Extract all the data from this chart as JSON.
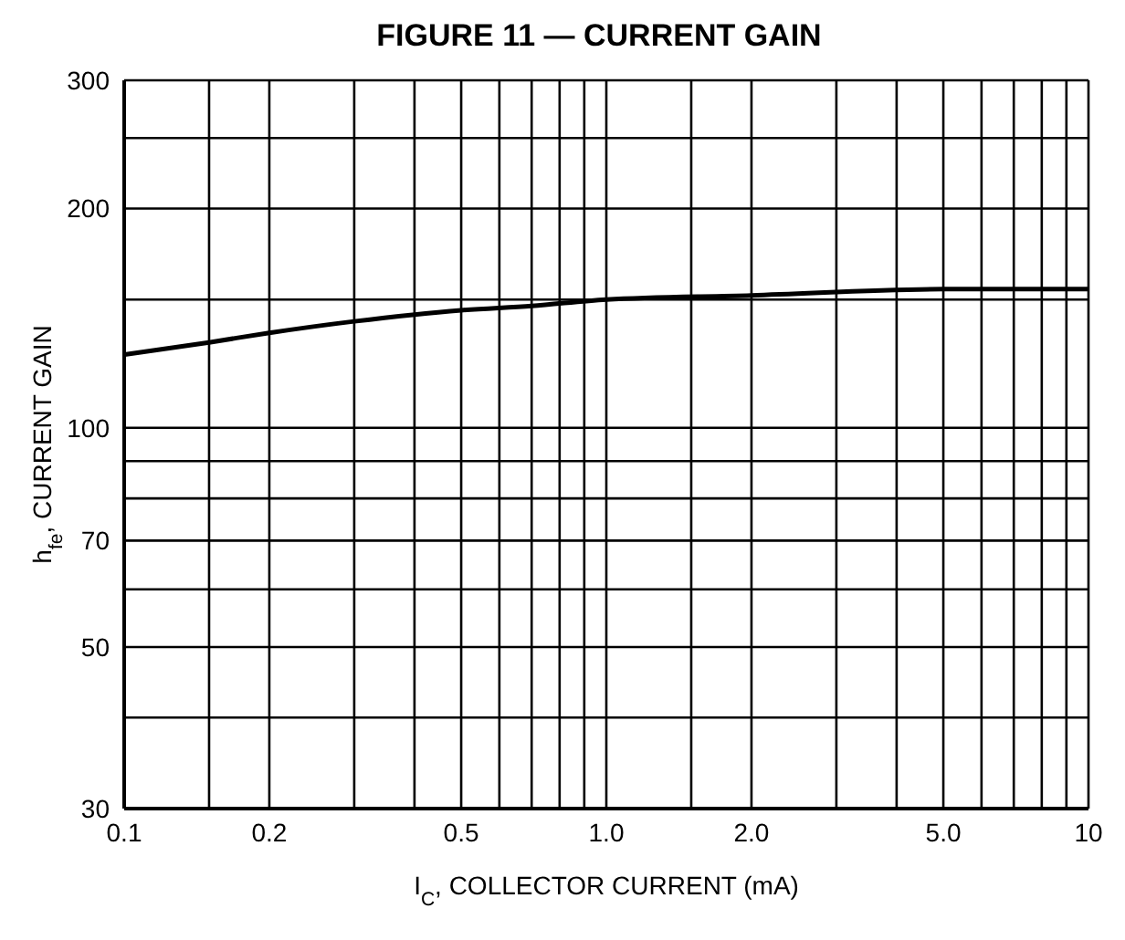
{
  "chart_data": {
    "type": "line",
    "title": "FIGURE 11 — CURRENT GAIN",
    "xlabel": "I$_{C}$, COLLECTOR CURRENT (mA)",
    "ylabel": "h$_{fe}$, CURRENT GAIN",
    "x": [
      0.1,
      0.15,
      0.2,
      0.3,
      0.5,
      0.7,
      1.0,
      2.0,
      5.0,
      10
    ],
    "series": [
      {
        "color": "#000000",
        "values": [
          126,
          131,
          135,
          140,
          145,
          147,
          150,
          152,
          155,
          155
        ]
      }
    ],
    "log": "xy",
    "xlim": [
      0.1,
      10
    ],
    "ylim": [
      30,
      300
    ],
    "xticks": [
      0.1,
      {
        "value": 0.15,
        "label": null
      },
      0.2,
      {
        "value": 0.3,
        "label": null
      },
      {
        "value": 0.4,
        "label": null
      },
      0.5,
      {
        "value": 0.6,
        "label": null
      },
      {
        "value": 0.7,
        "label": null
      },
      {
        "value": 0.8,
        "label": null
      },
      {
        "value": 0.9,
        "label": null
      },
      {
        "value": 1,
        "label": "1.0"
      },
      {
        "value": 1.5,
        "label": null
      },
      {
        "value": 2,
        "label": "2.0"
      },
      {
        "value": 3,
        "label": null
      },
      {
        "value": 4,
        "label": null
      },
      {
        "value": 5,
        "label": "5.0"
      },
      {
        "value": 6,
        "label": null
      },
      {
        "value": 7,
        "label": null
      },
      {
        "value": 8,
        "label": null
      },
      {
        "value": 9,
        "label": null
      },
      10
    ],
    "yticks": [
      30,
      {
        "value": 40,
        "label": null
      },
      50,
      {
        "value": 60,
        "label": null
      },
      70,
      {
        "value": 80,
        "label": null
      },
      {
        "value": 90,
        "label": null
      },
      100,
      {
        "value": 150,
        "label": null
      },
      200,
      {
        "value": 250,
        "label": null
      },
      300
    ],
    "grid": true,
    "marker": "none",
    "line_style": "solid",
    "legend": false
  }
}
